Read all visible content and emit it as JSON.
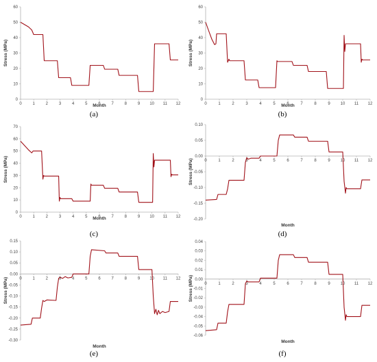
{
  "colors": {
    "series": "#a01018",
    "axis": "#b0b0b0"
  },
  "chart_data": [
    {
      "id": "a",
      "type": "line",
      "caption": "(a)",
      "xlabel": "Month",
      "ylabel": "Stress (MPa)",
      "xlim": [
        0,
        12
      ],
      "ylim": [
        0,
        60
      ],
      "xticks": [
        "0",
        "1",
        "2",
        "3",
        "4",
        "5",
        "6",
        "7",
        "8",
        "9",
        "10",
        "11",
        "12"
      ],
      "yticks": [
        "0",
        "10",
        "20",
        "30",
        "40",
        "50",
        "60"
      ],
      "series": [
        {
          "points": [
            [
              0,
              50
            ],
            [
              0.3,
              48.5
            ],
            [
              0.6,
              47
            ],
            [
              0.85,
              45
            ],
            [
              1,
              42
            ],
            [
              1.7,
              42
            ],
            [
              1.8,
              25
            ],
            [
              2.8,
              25
            ],
            [
              2.9,
              14
            ],
            [
              3.8,
              14
            ],
            [
              3.9,
              9
            ],
            [
              5.2,
              9
            ],
            [
              5.3,
              22
            ],
            [
              6.3,
              22
            ],
            [
              6.4,
              19.5
            ],
            [
              7.4,
              19.5
            ],
            [
              7.5,
              15.5
            ],
            [
              8.9,
              15.5
            ],
            [
              9,
              5
            ],
            [
              10.1,
              5
            ],
            [
              10.2,
              36
            ],
            [
              11.3,
              36
            ],
            [
              11.4,
              25.5
            ],
            [
              12,
              25.5
            ]
          ]
        }
      ]
    },
    {
      "id": "b",
      "type": "line",
      "caption": "(b)",
      "xlabel": "Month",
      "ylabel": "Stress (MPa)",
      "xlim": [
        0,
        12
      ],
      "ylim": [
        0,
        60
      ],
      "xticks": [
        "0",
        "1",
        "2",
        "3",
        "4",
        "5",
        "6",
        "7",
        "8",
        "9",
        "10",
        "11",
        "12"
      ],
      "yticks": [
        "0",
        "10",
        "20",
        "30",
        "40",
        "50",
        "60"
      ],
      "series": [
        {
          "points": [
            [
              0,
              50
            ],
            [
              0.2,
              45
            ],
            [
              0.45,
              39
            ],
            [
              0.65,
              35.5
            ],
            [
              0.75,
              36
            ],
            [
              0.8,
              42.5
            ],
            [
              1.5,
              42.5
            ],
            [
              1.6,
              24
            ],
            [
              1.7,
              26
            ],
            [
              1.75,
              25
            ],
            [
              2.8,
              25
            ],
            [
              2.9,
              12.5
            ],
            [
              3.8,
              12.5
            ],
            [
              3.9,
              7.5
            ],
            [
              5.1,
              7.5
            ],
            [
              5.2,
              25
            ],
            [
              5.25,
              24.5
            ],
            [
              6.3,
              24.5
            ],
            [
              6.4,
              22
            ],
            [
              7.4,
              22
            ],
            [
              7.5,
              18
            ],
            [
              8.8,
              18
            ],
            [
              8.9,
              7
            ],
            [
              10.05,
              7
            ],
            [
              10.1,
              41.5
            ],
            [
              10.15,
              31
            ],
            [
              10.2,
              36
            ],
            [
              11.3,
              36
            ],
            [
              11.35,
              24
            ],
            [
              11.4,
              26
            ],
            [
              11.45,
              25.5
            ],
            [
              12,
              25.5
            ]
          ]
        }
      ]
    },
    {
      "id": "c",
      "type": "line",
      "caption": "(c)",
      "xlabel": "Month",
      "ylabel": "Stress (MPa)",
      "xlim": [
        0,
        12
      ],
      "ylim": [
        0,
        70
      ],
      "xticks": [
        "0",
        "1",
        "2",
        "3",
        "4",
        "5",
        "6",
        "7",
        "8",
        "9",
        "10",
        "11",
        "12"
      ],
      "yticks": [
        "0",
        "10",
        "20",
        "30",
        "40",
        "50",
        "60",
        "70"
      ],
      "series": [
        {
          "points": [
            [
              0,
              58
            ],
            [
              0.3,
              54.5
            ],
            [
              0.6,
              51
            ],
            [
              0.85,
              48.5
            ],
            [
              0.95,
              50
            ],
            [
              1.6,
              50
            ],
            [
              1.7,
              27
            ],
            [
              1.75,
              30
            ],
            [
              1.8,
              29.5
            ],
            [
              2.9,
              29.5
            ],
            [
              2.95,
              9
            ],
            [
              3.0,
              12
            ],
            [
              3.05,
              11
            ],
            [
              3.9,
              11
            ],
            [
              4.0,
              9
            ],
            [
              5.3,
              9
            ],
            [
              5.35,
              23
            ],
            [
              5.4,
              22
            ],
            [
              6.3,
              22
            ],
            [
              6.4,
              19.5
            ],
            [
              7.4,
              19.5
            ],
            [
              7.5,
              16.5
            ],
            [
              8.9,
              16.5
            ],
            [
              9,
              8
            ],
            [
              10.05,
              8
            ],
            [
              10.1,
              48
            ],
            [
              10.15,
              37
            ],
            [
              10.2,
              42.5
            ],
            [
              11.4,
              42.5
            ],
            [
              11.45,
              29
            ],
            [
              11.5,
              31
            ],
            [
              11.55,
              30.5
            ],
            [
              12,
              30.5
            ]
          ]
        }
      ]
    },
    {
      "id": "d",
      "type": "line",
      "caption": "(d)",
      "xlabel": "Month",
      "ylabel": "Stress (MPa)",
      "xlim": [
        0,
        12
      ],
      "ylim": [
        -0.2,
        0.1
      ],
      "xticks": [
        "0",
        "1",
        "2",
        "3",
        "4",
        "5",
        "6",
        "7",
        "8",
        "9",
        "10",
        "11",
        "12"
      ],
      "yticks": [
        "-0.20",
        "-0.15",
        "-0.10",
        "-0.05",
        "0.00",
        "0.05",
        "0.10"
      ],
      "series": [
        {
          "points": [
            [
              0,
              -0.14
            ],
            [
              0.8,
              -0.138
            ],
            [
              0.9,
              -0.122
            ],
            [
              1.5,
              -0.122
            ],
            [
              1.6,
              -0.105
            ],
            [
              1.7,
              -0.077
            ],
            [
              2.8,
              -0.077
            ],
            [
              2.9,
              -0.02
            ],
            [
              3.0,
              -0.005
            ],
            [
              3.1,
              -0.01
            ],
            [
              3.3,
              -0.007
            ],
            [
              3.9,
              -0.007
            ],
            [
              4.0,
              0
            ],
            [
              5.2,
              0
            ],
            [
              5.3,
              0.05
            ],
            [
              5.4,
              0.067
            ],
            [
              6.4,
              0.067
            ],
            [
              6.5,
              0.06
            ],
            [
              7.4,
              0.06
            ],
            [
              7.5,
              0.047
            ],
            [
              8.9,
              0.047
            ],
            [
              9,
              0.013
            ],
            [
              10.0,
              0.013
            ],
            [
              10.1,
              -0.08
            ],
            [
              10.2,
              -0.118
            ],
            [
              10.25,
              -0.1
            ],
            [
              10.3,
              -0.104
            ],
            [
              11.3,
              -0.104
            ],
            [
              11.4,
              -0.076
            ],
            [
              12,
              -0.076
            ]
          ]
        }
      ]
    },
    {
      "id": "e",
      "type": "line",
      "caption": "(e)",
      "xlabel": "Month",
      "ylabel": "Stress (MPa)",
      "xlim": [
        0,
        12
      ],
      "ylim": [
        -0.3,
        0.15
      ],
      "xticks": [
        "0",
        "1",
        "2",
        "3",
        "4",
        "5",
        "6",
        "7",
        "8",
        "9",
        "10",
        "11",
        "12"
      ],
      "yticks": [
        "-0.30",
        "-0.25",
        "-0.20",
        "-0.15",
        "-0.10",
        "-0.05",
        "0.00",
        "0.05",
        "0.10",
        "0.15"
      ],
      "series": [
        {
          "points": [
            [
              0,
              -0.232
            ],
            [
              0.8,
              -0.228
            ],
            [
              0.9,
              -0.2
            ],
            [
              1.5,
              -0.2
            ],
            [
              1.6,
              -0.155
            ],
            [
              1.7,
              -0.12
            ],
            [
              1.8,
              -0.125
            ],
            [
              2.0,
              -0.118
            ],
            [
              2.7,
              -0.12
            ],
            [
              2.8,
              -0.06
            ],
            [
              2.9,
              -0.02
            ],
            [
              3.0,
              -0.015
            ],
            [
              3.2,
              -0.02
            ],
            [
              3.4,
              -0.012
            ],
            [
              3.6,
              -0.018
            ],
            [
              3.9,
              -0.015
            ],
            [
              4.0,
              0
            ],
            [
              5.2,
              0
            ],
            [
              5.3,
              0.08
            ],
            [
              5.4,
              0.11
            ],
            [
              6.4,
              0.105
            ],
            [
              6.5,
              0.095
            ],
            [
              7.4,
              0.095
            ],
            [
              7.5,
              0.08
            ],
            [
              8.9,
              0.08
            ],
            [
              9,
              0.02
            ],
            [
              10.0,
              0.02
            ],
            [
              10.1,
              -0.1
            ],
            [
              10.2,
              -0.18
            ],
            [
              10.3,
              -0.16
            ],
            [
              10.4,
              -0.185
            ],
            [
              10.5,
              -0.165
            ],
            [
              10.6,
              -0.18
            ],
            [
              10.8,
              -0.17
            ],
            [
              11.0,
              -0.175
            ],
            [
              11.3,
              -0.17
            ],
            [
              11.4,
              -0.125
            ],
            [
              12,
              -0.125
            ]
          ]
        }
      ]
    },
    {
      "id": "f",
      "type": "line",
      "caption": "(f)",
      "xlabel": "Month",
      "ylabel": "Stress (MPa)",
      "xlim": [
        0,
        12
      ],
      "ylim": [
        -0.06,
        0.04
      ],
      "xticks": [
        "0",
        "1",
        "2",
        "3",
        "4",
        "5",
        "6",
        "7",
        "8",
        "9",
        "10",
        "11",
        "12"
      ],
      "yticks": [
        "-0.06",
        "-0.05",
        "-0.04",
        "-0.03",
        "-0.02",
        "-0.01",
        "0.00",
        "0.01",
        "0.02",
        "0.03",
        "0.04"
      ],
      "series": [
        {
          "points": [
            [
              0,
              -0.055
            ],
            [
              0.8,
              -0.054
            ],
            [
              0.9,
              -0.047
            ],
            [
              1.5,
              -0.047
            ],
            [
              1.6,
              -0.035
            ],
            [
              1.7,
              -0.027
            ],
            [
              2.8,
              -0.027
            ],
            [
              2.9,
              -0.005
            ],
            [
              3.0,
              -0.002
            ],
            [
              3.1,
              -0.003
            ],
            [
              3.9,
              -0.003
            ],
            [
              4.0,
              0.001
            ],
            [
              5.2,
              0.001
            ],
            [
              5.3,
              0.02
            ],
            [
              5.4,
              0.026
            ],
            [
              6.4,
              0.026
            ],
            [
              6.5,
              0.023
            ],
            [
              7.4,
              0.023
            ],
            [
              7.5,
              0.018
            ],
            [
              8.9,
              0.018
            ],
            [
              9,
              0.005
            ],
            [
              10.0,
              0.005
            ],
            [
              10.1,
              -0.03
            ],
            [
              10.2,
              -0.044
            ],
            [
              10.25,
              -0.038
            ],
            [
              10.3,
              -0.04
            ],
            [
              11.3,
              -0.04
            ],
            [
              11.4,
              -0.028
            ],
            [
              12,
              -0.028
            ]
          ]
        }
      ]
    }
  ]
}
